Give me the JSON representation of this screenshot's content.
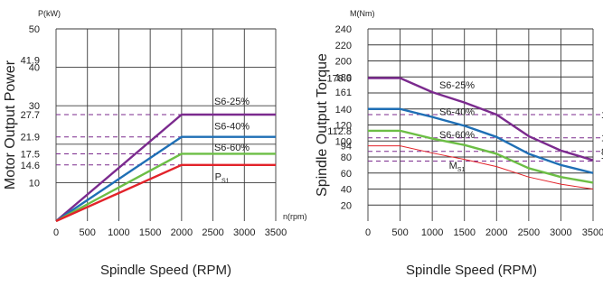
{
  "chart_data": [
    {
      "type": "line",
      "unit_label": "P(kW)",
      "x_unit_label": "n(rpm)",
      "ylabel": "Motor Output Power",
      "xlabel": "Spindle Speed (RPM)",
      "xlim": [
        0,
        3500
      ],
      "ylim": [
        0,
        50
      ],
      "x_ticks": [
        0,
        500,
        1000,
        1500,
        2000,
        2500,
        3000,
        3500
      ],
      "y_ticks": [
        10,
        14.6,
        17.5,
        21.9,
        27.7,
        30,
        40,
        41.9,
        50
      ],
      "y_tick_labels": [
        "10",
        "14.6",
        "17.5",
        "21.9",
        "27.7",
        "30",
        "40",
        "41.9",
        "50"
      ],
      "grid_y": [
        10,
        20,
        30,
        40,
        50
      ],
      "dashed_y": [
        14.6,
        17.5,
        21.9,
        27.7
      ],
      "grid": true,
      "series": [
        {
          "name": "S6-25%",
          "color": "#7b2a8e",
          "x": [
            0,
            2000,
            3500
          ],
          "y": [
            0,
            27.7,
            27.7
          ]
        },
        {
          "name": "S6-40%",
          "color": "#1f6fb5",
          "x": [
            0,
            2000,
            3500
          ],
          "y": [
            0,
            21.9,
            21.9
          ]
        },
        {
          "name": "S6-60%",
          "color": "#6cbe45",
          "x": [
            0,
            2000,
            3500
          ],
          "y": [
            0,
            17.5,
            17.5
          ]
        },
        {
          "name": "P",
          "sub": "S1",
          "color": "#e2232a",
          "x": [
            0,
            2000,
            3500
          ],
          "y": [
            0,
            14.6,
            14.6
          ]
        }
      ],
      "annotations": [
        {
          "text": "S6-25%",
          "x": 2520,
          "y": 31.2
        },
        {
          "text": "S6-40%",
          "x": 2520,
          "y": 24.8
        },
        {
          "text": "S6-60%",
          "x": 2520,
          "y": 19.2
        },
        {
          "text": "P",
          "sub": "S1",
          "x": 2530,
          "y": 11.6
        }
      ]
    },
    {
      "type": "line",
      "unit_label": "M(Nm)",
      "ylabel": "Spindle Output Torque",
      "xlabel": "Spindle Speed (RPM)",
      "xlim": [
        0,
        3500
      ],
      "ylim": [
        0,
        240
      ],
      "x_ticks": [
        0,
        500,
        1000,
        1500,
        2000,
        2500,
        3000,
        3500
      ],
      "y_ticks": [
        20,
        40,
        60,
        80,
        94,
        100,
        112.8,
        120,
        140,
        161,
        178.6,
        180,
        200,
        220,
        240
      ],
      "y_tick_labels": [
        "20",
        "40",
        "60",
        "80",
        "94",
        "100",
        "112.8",
        "120",
        "140",
        "161",
        "178.6",
        "180",
        "200",
        "220",
        "240"
      ],
      "grid_y": [
        20,
        40,
        60,
        80,
        100,
        120,
        140,
        160,
        180,
        200,
        220,
        240
      ],
      "dashed_y": [
        75,
        87,
        104,
        133
      ],
      "right_cut_labels": [
        "1",
        "1",
        "8",
        "7"
      ],
      "grid": true,
      "series": [
        {
          "name": "S6-25%",
          "color": "#7b2a8e",
          "x": [
            0,
            500,
            1000,
            1500,
            2000,
            2500,
            3000,
            3500
          ],
          "y": [
            178.6,
            178.6,
            161,
            148,
            133,
            106,
            88,
            76
          ]
        },
        {
          "name": "S6-40%",
          "color": "#1f6fb5",
          "x": [
            0,
            500,
            1000,
            1500,
            2000,
            2500,
            3000,
            3500
          ],
          "y": [
            140,
            140,
            130,
            119,
            105,
            84,
            70,
            60
          ]
        },
        {
          "name": "S6-60%",
          "color": "#6cbe45",
          "x": [
            0,
            500,
            1000,
            1500,
            2000,
            2500,
            3000,
            3500
          ],
          "y": [
            112.8,
            112.8,
            103,
            95,
            84,
            66,
            55,
            48
          ]
        },
        {
          "name": "M",
          "sub": "S1",
          "color": "#e2232a",
          "x": [
            0,
            500,
            1000,
            1500,
            2000,
            2500,
            3000,
            3500
          ],
          "y": [
            94,
            94,
            85,
            77,
            68,
            55,
            46,
            40
          ]
        }
      ],
      "annotations": [
        {
          "text": "S6-25%",
          "x": 1110,
          "y": 170
        },
        {
          "text": "S6-40%",
          "x": 1110,
          "y": 137
        },
        {
          "text": "S6-60%",
          "x": 1110,
          "y": 108
        },
        {
          "text": "M",
          "sub": "S1",
          "x": 1260,
          "y": 70
        }
      ]
    }
  ]
}
